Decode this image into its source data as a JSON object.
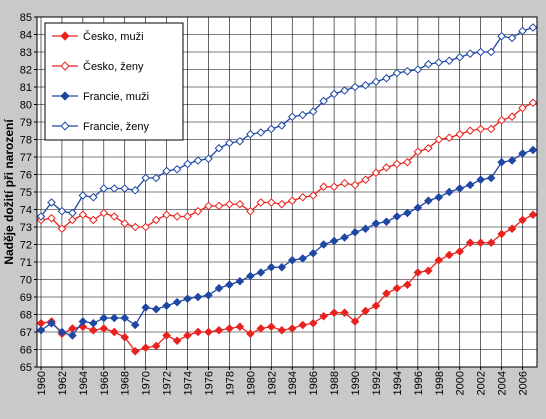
{
  "chart_data": {
    "type": "line",
    "title": "",
    "xlabel": "",
    "ylabel": "Naděje dožití při narození",
    "xlim": [
      1960,
      2007
    ],
    "ylim": [
      65,
      85
    ],
    "yticks": [
      65,
      66,
      67,
      68,
      69,
      70,
      71,
      72,
      73,
      74,
      75,
      76,
      77,
      78,
      79,
      80,
      81,
      82,
      83,
      84,
      85
    ],
    "xticks": [
      "1960",
      "1962",
      "1964",
      "1966",
      "1968",
      "1970",
      "1972",
      "1974",
      "1976",
      "1978",
      "1980",
      "1982",
      "1984",
      "1986",
      "1988",
      "1990",
      "1992",
      "1994",
      "1996",
      "1998",
      "2000",
      "2002",
      "2004",
      "2006"
    ],
    "grid": true,
    "legend_position": "top-left",
    "x": [
      1960,
      1961,
      1962,
      1963,
      1964,
      1965,
      1966,
      1967,
      1968,
      1969,
      1970,
      1971,
      1972,
      1973,
      1974,
      1975,
      1976,
      1977,
      1978,
      1979,
      1980,
      1981,
      1982,
      1983,
      1984,
      1985,
      1986,
      1987,
      1988,
      1989,
      1990,
      1991,
      1992,
      1993,
      1994,
      1995,
      1996,
      1997,
      1998,
      1999,
      2000,
      2001,
      2002,
      2003,
      2004,
      2005,
      2006,
      2007
    ],
    "series": [
      {
        "name": "Česko, muži",
        "color": "#e8231f",
        "marker": "filled-diamond",
        "values": [
          67.5,
          67.6,
          66.9,
          67.2,
          67.3,
          67.1,
          67.2,
          67.0,
          66.7,
          65.9,
          66.1,
          66.2,
          66.8,
          66.5,
          66.8,
          67.0,
          67.0,
          67.1,
          67.2,
          67.3,
          66.9,
          67.2,
          67.3,
          67.1,
          67.2,
          67.4,
          67.5,
          67.9,
          68.1,
          68.1,
          67.6,
          68.2,
          68.5,
          69.2,
          69.5,
          69.7,
          70.4,
          70.5,
          71.1,
          71.4,
          71.6,
          72.1,
          72.1,
          72.1,
          72.6,
          72.9,
          73.4,
          73.7
        ]
      },
      {
        "name": "Česko, ženy",
        "color": "#e8231f",
        "marker": "open-diamond",
        "values": [
          73.4,
          73.5,
          72.9,
          73.4,
          73.7,
          73.4,
          73.8,
          73.6,
          73.2,
          73.0,
          73.0,
          73.4,
          73.7,
          73.6,
          73.6,
          73.9,
          74.2,
          74.2,
          74.3,
          74.3,
          73.9,
          74.4,
          74.4,
          74.3,
          74.5,
          74.7,
          74.8,
          75.3,
          75.3,
          75.5,
          75.4,
          75.7,
          76.1,
          76.4,
          76.6,
          76.7,
          77.3,
          77.5,
          78.0,
          78.1,
          78.3,
          78.5,
          78.6,
          78.6,
          79.1,
          79.3,
          79.8,
          80.1
        ]
      },
      {
        "name": "Francie, muži",
        "color": "#1f47a3",
        "marker": "filled-diamond",
        "values": [
          67.1,
          67.5,
          67.0,
          66.8,
          67.6,
          67.5,
          67.8,
          67.8,
          67.8,
          67.4,
          68.4,
          68.3,
          68.5,
          68.7,
          68.9,
          69.0,
          69.1,
          69.5,
          69.7,
          69.9,
          70.2,
          70.4,
          70.7,
          70.7,
          71.1,
          71.2,
          71.5,
          72.0,
          72.2,
          72.4,
          72.7,
          72.9,
          73.2,
          73.3,
          73.6,
          73.8,
          74.1,
          74.5,
          74.7,
          75.0,
          75.2,
          75.4,
          75.7,
          75.8,
          76.7,
          76.8,
          77.2,
          77.4
        ]
      },
      {
        "name": "Francie, ženy",
        "color": "#1f47a3",
        "marker": "open-diamond",
        "values": [
          73.6,
          74.4,
          73.9,
          73.8,
          74.8,
          74.7,
          75.2,
          75.2,
          75.2,
          75.1,
          75.8,
          75.8,
          76.2,
          76.3,
          76.6,
          76.8,
          76.9,
          77.5,
          77.8,
          77.9,
          78.3,
          78.4,
          78.6,
          78.8,
          79.3,
          79.4,
          79.6,
          80.2,
          80.6,
          80.8,
          81.0,
          81.1,
          81.3,
          81.5,
          81.8,
          81.9,
          82.0,
          82.3,
          82.4,
          82.5,
          82.7,
          82.9,
          83.0,
          83.0,
          83.9,
          83.8,
          84.2,
          84.4
        ]
      }
    ]
  }
}
